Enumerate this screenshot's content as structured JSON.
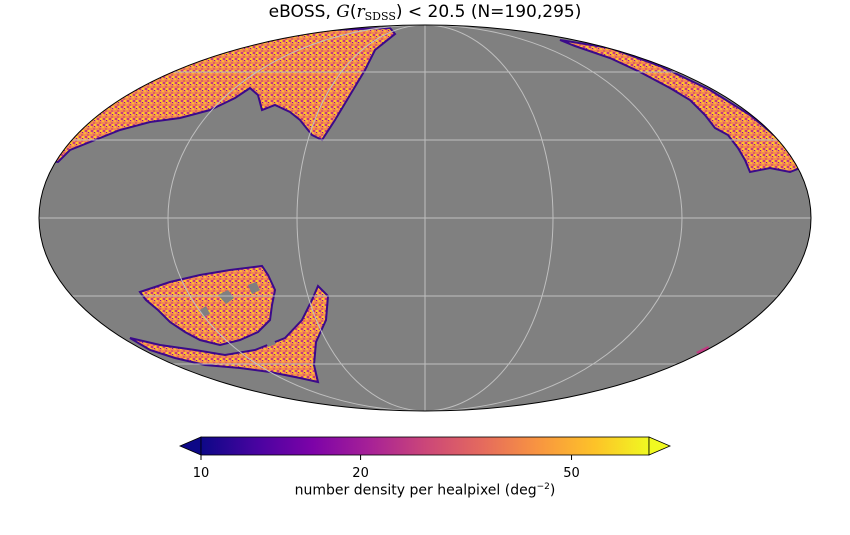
{
  "title": {
    "survey": "eBOSS",
    "math_G": "G",
    "math_r": "r",
    "subscript": "SDSS",
    "comparison": "< 20.5",
    "count": "(N=190,295)"
  },
  "map": {
    "projection": "mollweide",
    "background_color": "#808080",
    "grid_color": "#bfbfbf",
    "colormap": "plasma"
  },
  "colorbar": {
    "ticks": [
      "10",
      "20",
      "50"
    ],
    "tick_values": [
      10,
      20,
      50
    ],
    "range": [
      10,
      70
    ],
    "scale": "log",
    "label": "number density per healpixel (deg",
    "label_exp": "−2",
    "label_close": ")"
  }
}
